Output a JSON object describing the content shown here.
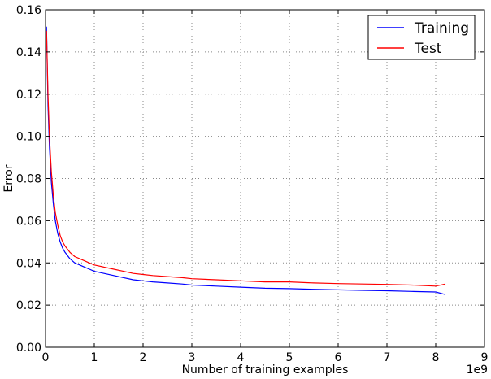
{
  "chart_data": {
    "type": "line",
    "title": "",
    "xlabel": "Number of training examples",
    "ylabel": "Error",
    "x_multiplier_label": "1e9",
    "x_scale_factor": 1000000000.0,
    "xlim": [
      0,
      9
    ],
    "ylim": [
      0.0,
      0.16
    ],
    "x_ticks": [
      0,
      1,
      2,
      3,
      4,
      5,
      6,
      7,
      8,
      9
    ],
    "x_tick_labels": [
      "0",
      "1",
      "2",
      "3",
      "4",
      "5",
      "6",
      "7",
      "8",
      "9"
    ],
    "y_ticks": [
      0.0,
      0.02,
      0.04,
      0.06,
      0.08,
      0.1,
      0.12,
      0.14,
      0.16
    ],
    "y_tick_labels": [
      "0.00",
      "0.02",
      "0.04",
      "0.06",
      "0.08",
      "0.10",
      "0.12",
      "0.14",
      "0.16"
    ],
    "grid": true,
    "legend_position": "top-right",
    "series": [
      {
        "name": "Training",
        "color": "#0000ff",
        "x": [
          0.02,
          0.05,
          0.08,
          0.12,
          0.16,
          0.2,
          0.25,
          0.3,
          0.35,
          0.4,
          0.5,
          0.6,
          0.7,
          0.8,
          0.9,
          1.0,
          1.2,
          1.4,
          1.6,
          1.8,
          2.0,
          2.2,
          2.5,
          2.8,
          3.0,
          3.5,
          4.0,
          4.5,
          5.0,
          5.5,
          6.0,
          6.5,
          7.0,
          7.5,
          8.0,
          8.2
        ],
        "y": [
          0.152,
          0.115,
          0.095,
          0.078,
          0.068,
          0.06,
          0.054,
          0.05,
          0.047,
          0.045,
          0.042,
          0.04,
          0.039,
          0.038,
          0.037,
          0.036,
          0.035,
          0.034,
          0.033,
          0.032,
          0.0315,
          0.031,
          0.0305,
          0.03,
          0.0295,
          0.029,
          0.0285,
          0.028,
          0.0278,
          0.0275,
          0.0272,
          0.027,
          0.0268,
          0.0265,
          0.0262,
          0.025
        ]
      },
      {
        "name": "Test",
        "color": "#ff0000",
        "x": [
          0.02,
          0.05,
          0.08,
          0.12,
          0.16,
          0.2,
          0.25,
          0.3,
          0.35,
          0.4,
          0.5,
          0.6,
          0.7,
          0.8,
          0.9,
          1.0,
          1.2,
          1.4,
          1.6,
          1.8,
          2.0,
          2.2,
          2.5,
          2.8,
          3.0,
          3.5,
          4.0,
          4.5,
          5.0,
          5.5,
          6.0,
          6.5,
          7.0,
          7.5,
          8.0,
          8.2
        ],
        "y": [
          0.15,
          0.12,
          0.1,
          0.083,
          0.072,
          0.064,
          0.058,
          0.053,
          0.05,
          0.048,
          0.045,
          0.043,
          0.042,
          0.041,
          0.04,
          0.039,
          0.038,
          0.037,
          0.036,
          0.035,
          0.0345,
          0.034,
          0.0335,
          0.033,
          0.0325,
          0.032,
          0.0315,
          0.031,
          0.031,
          0.0305,
          0.0302,
          0.03,
          0.0298,
          0.0295,
          0.029,
          0.03
        ]
      }
    ]
  }
}
